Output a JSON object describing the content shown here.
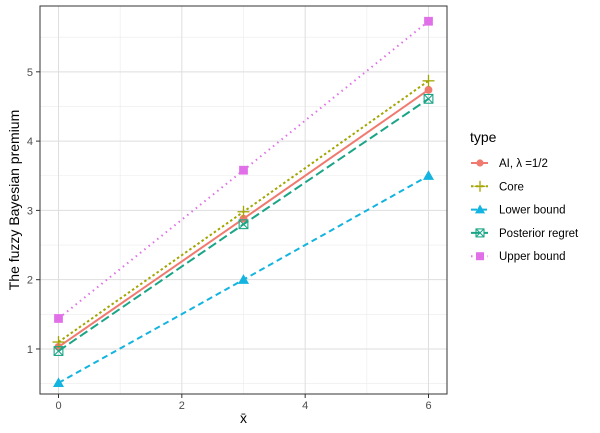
{
  "chart_data": {
    "type": "line",
    "xlabel": "x̄",
    "ylabel": "The fuzzy Bayesian premium",
    "x": [
      0,
      3,
      6
    ],
    "xlim": [
      -0.3,
      6.3
    ],
    "ylim": [
      0.35,
      5.95
    ],
    "xticks": [
      0,
      2,
      4,
      6
    ],
    "yticks": [
      1,
      2,
      3,
      4,
      5
    ],
    "grid": true,
    "legend": {
      "title": "type",
      "position": "right"
    },
    "series": [
      {
        "name": "AI, λ =1/2",
        "values": [
          1.03,
          2.88,
          4.74
        ],
        "color": "#F07A6F",
        "marker": "circle",
        "dash": "solid"
      },
      {
        "name": "Core",
        "values": [
          1.1,
          2.98,
          4.87
        ],
        "color": "#A3A500",
        "marker": "plus",
        "dash": "dotted"
      },
      {
        "name": "Lower bound",
        "values": [
          0.51,
          2.0,
          3.5
        ],
        "color": "#13B4E0",
        "marker": "triangle",
        "dash": "dashed"
      },
      {
        "name": "Posterior regret",
        "values": [
          0.97,
          2.8,
          4.61
        ],
        "color": "#1AA587",
        "marker": "boxx",
        "dash": "longdash"
      },
      {
        "name": "Upper bound",
        "values": [
          1.44,
          3.58,
          5.73
        ],
        "color": "#E16FE8",
        "marker": "square",
        "dash": "dotted2"
      }
    ]
  }
}
